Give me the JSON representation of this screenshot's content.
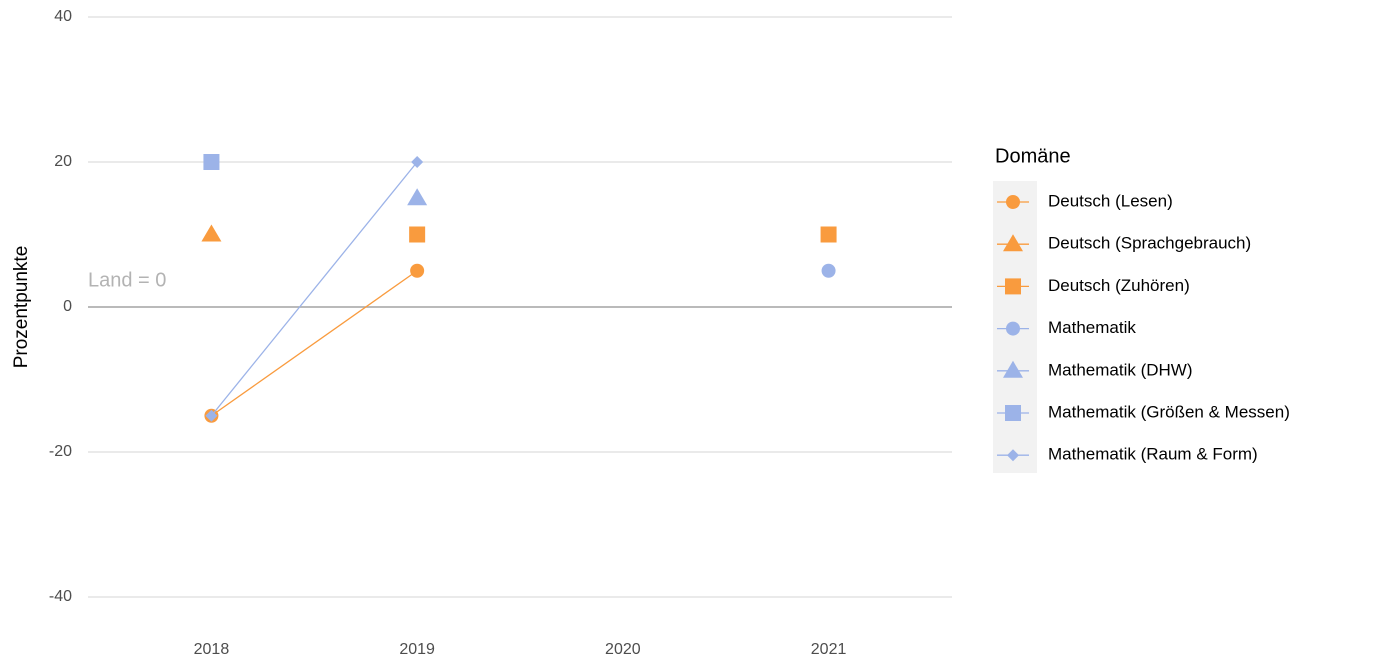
{
  "chart_data": {
    "type": "line",
    "y_label": "Prozentpunkte",
    "annotation": "Land = 0",
    "hline": 0,
    "legend_title": "Domäne",
    "legend_position": "right",
    "grid": true,
    "x": [
      2018,
      2019,
      2020,
      2021
    ],
    "xlim": [
      2017.4,
      2021.6
    ],
    "xticks": [
      2018,
      2019,
      2020,
      2021
    ],
    "ylim": [
      -40,
      40
    ],
    "yticks": [
      -40,
      -20,
      0,
      20,
      40
    ],
    "series": [
      {
        "name": "Deutsch (Lesen)",
        "color": "#f99b3e",
        "marker": "circle",
        "values": [
          -15,
          5,
          null,
          null
        ]
      },
      {
        "name": "Deutsch (Sprachgebrauch)",
        "color": "#f99b3e",
        "marker": "triangle",
        "values": [
          10,
          null,
          null,
          null
        ]
      },
      {
        "name": "Deutsch (Zuhören)",
        "color": "#f99b3e",
        "marker": "square",
        "values": [
          null,
          10,
          null,
          10
        ]
      },
      {
        "name": "Mathematik",
        "color": "#9cb3e8",
        "marker": "circle",
        "values": [
          null,
          null,
          null,
          5
        ]
      },
      {
        "name": "Mathematik (DHW)",
        "color": "#9cb3e8",
        "marker": "triangle",
        "values": [
          null,
          15,
          null,
          null
        ]
      },
      {
        "name": "Mathematik (Größen & Messen)",
        "color": "#9cb3e8",
        "marker": "square",
        "values": [
          20,
          null,
          null,
          null
        ]
      },
      {
        "name": "Mathematik (Raum & Form)",
        "color": "#9cb3e8",
        "marker": "diamond",
        "values": [
          -15,
          20,
          null,
          null
        ]
      }
    ]
  }
}
